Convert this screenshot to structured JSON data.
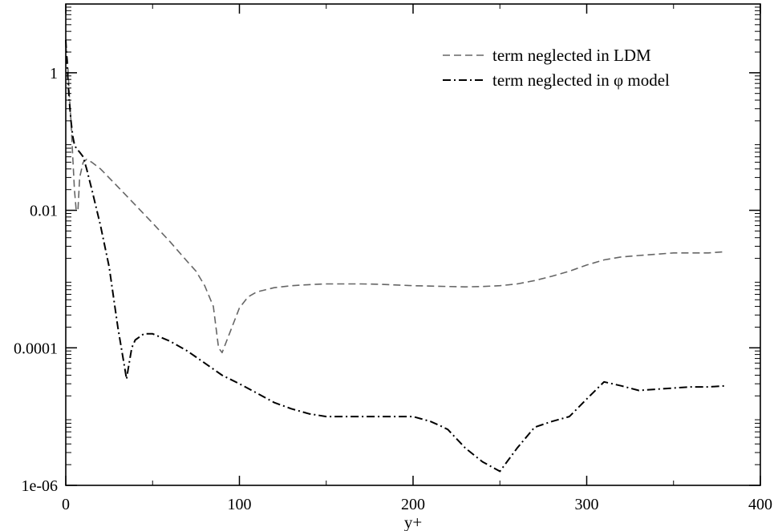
{
  "chart_data": {
    "type": "line",
    "xlabel": "y+",
    "ylabel": "",
    "xlim": [
      0,
      400
    ],
    "ylim": [
      1e-06,
      10
    ],
    "yscale": "log",
    "grid": false,
    "legend_position": "top-right",
    "x_ticks": [
      0,
      100,
      200,
      300,
      400
    ],
    "x_tick_labels": [
      "0",
      "100",
      "200",
      "300",
      "400"
    ],
    "y_ticks": [
      1e-06,
      0.0001,
      0.01,
      1
    ],
    "y_tick_labels": [
      "1e-06",
      "0.0001",
      "0.01",
      "1"
    ],
    "series": [
      {
        "name": "term neglected in LDM",
        "style": "dashed",
        "color": "#666666",
        "x": [
          0,
          1,
          2,
          3,
          4,
          5,
          6,
          7,
          8,
          10,
          12,
          15,
          20,
          30,
          40,
          50,
          60,
          70,
          75,
          80,
          85,
          88,
          90,
          95,
          100,
          105,
          110,
          120,
          130,
          140,
          150,
          160,
          170,
          180,
          190,
          200,
          210,
          220,
          230,
          240,
          250,
          260,
          270,
          280,
          290,
          300,
          310,
          320,
          330,
          340,
          350,
          360,
          370,
          380
        ],
        "y": [
          2.5,
          1.5,
          0.5,
          0.2,
          0.06,
          0.02,
          0.01,
          0.01,
          0.03,
          0.05,
          0.055,
          0.05,
          0.04,
          0.022,
          0.012,
          0.0065,
          0.0035,
          0.0018,
          0.0013,
          0.0008,
          0.0004,
          0.0001,
          8.5e-05,
          0.00018,
          0.00038,
          0.00055,
          0.00065,
          0.00075,
          0.0008,
          0.00083,
          0.00085,
          0.00085,
          0.00085,
          0.00084,
          0.00082,
          0.0008,
          0.00079,
          0.00078,
          0.00077,
          0.00078,
          0.0008,
          0.00085,
          0.00095,
          0.0011,
          0.0013,
          0.0016,
          0.0019,
          0.0021,
          0.0022,
          0.0023,
          0.0024,
          0.0024,
          0.0024,
          0.0025
        ]
      },
      {
        "name": "term neglected in φ model",
        "style": "dashdot",
        "color": "#000000",
        "x": [
          0,
          1,
          2,
          3,
          4,
          5,
          6,
          8,
          10,
          12,
          15,
          20,
          25,
          30,
          34,
          35,
          36,
          38,
          40,
          45,
          50,
          60,
          70,
          80,
          90,
          100,
          110,
          120,
          130,
          140,
          150,
          160,
          170,
          180,
          190,
          200,
          210,
          215,
          220,
          230,
          240,
          250,
          260,
          270,
          280,
          290,
          300,
          310,
          320,
          330,
          340,
          350,
          360,
          370,
          380
        ],
        "y": [
          3.0,
          1.0,
          0.4,
          0.2,
          0.12,
          0.09,
          0.08,
          0.07,
          0.06,
          0.04,
          0.02,
          0.006,
          0.0015,
          0.0002,
          5e-05,
          3.5e-05,
          5e-05,
          0.0001,
          0.00013,
          0.00016,
          0.00016,
          0.000125,
          9e-05,
          6e-05,
          4e-05,
          3e-05,
          2.2e-05,
          1.6e-05,
          1.3e-05,
          1.1e-05,
          1e-05,
          1e-05,
          1e-05,
          1e-05,
          1e-05,
          1e-05,
          8.5e-06,
          7.5e-06,
          6.5e-06,
          3.5e-06,
          2.2e-06,
          1.6e-06,
          3.5e-06,
          7e-06,
          8.5e-06,
          1e-05,
          1.8e-05,
          3.2e-05,
          2.8e-05,
          2.4e-05,
          2.5e-05,
          2.6e-05,
          2.7e-05,
          2.7e-05,
          2.8e-05
        ]
      }
    ]
  }
}
